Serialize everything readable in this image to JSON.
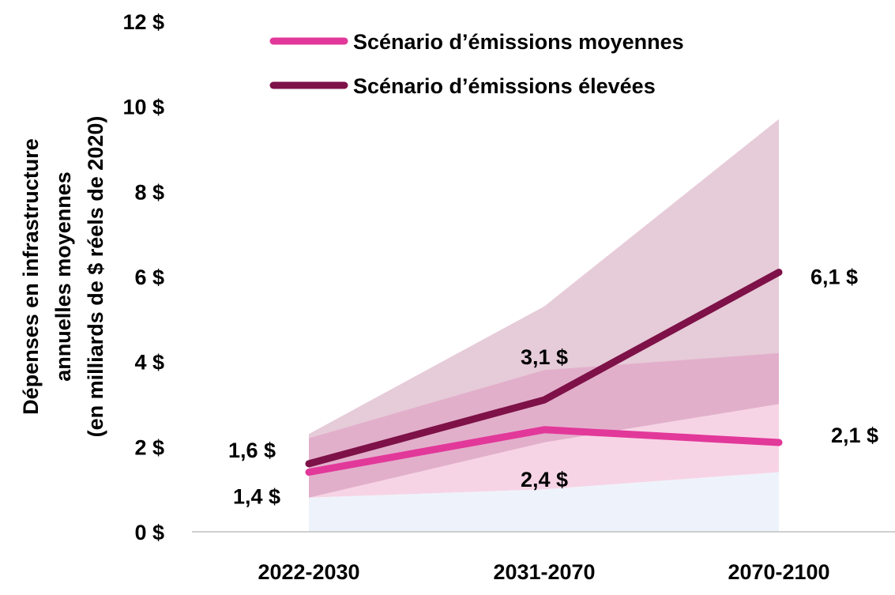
{
  "chart_data": {
    "type": "line",
    "title": "",
    "xlabel": "",
    "ylabel_lines": [
      "Dépenses en infrastructure",
      "annuelles moyennes",
      "(en milliards de $ réels de 2020)"
    ],
    "categories": [
      "2022-2030",
      "2031-2070",
      "2070-2100"
    ],
    "ylim": [
      0,
      12
    ],
    "y_ticks": [
      {
        "value": 0,
        "label": "0 $"
      },
      {
        "value": 2,
        "label": "2 $"
      },
      {
        "value": 4,
        "label": "4 $"
      },
      {
        "value": 6,
        "label": "6 $"
      },
      {
        "value": 8,
        "label": "8 $"
      },
      {
        "value": 10,
        "label": "10 $"
      },
      {
        "value": 12,
        "label": "12 $"
      }
    ],
    "grid": false,
    "legend_position": "top",
    "series": [
      {
        "name": "Scénario d’émissions moyennes",
        "color": "#e2389a",
        "values": [
          1.4,
          2.4,
          2.1
        ],
        "value_labels": [
          "1,4 $",
          "2,4 $",
          "2,1 $"
        ]
      },
      {
        "name": "Scénario d’émissions élevées",
        "color": "#7d1148",
        "values": [
          1.6,
          3.1,
          6.1
        ],
        "value_labels": [
          "1,6 $",
          "3,1 $",
          "6,1 $"
        ]
      }
    ],
    "bands": [
      {
        "color": "#e6cbd8",
        "lower": [
          0.8,
          2.1,
          4.2
        ],
        "upper": [
          2.3,
          5.3,
          9.7
        ]
      },
      {
        "color": "#e2afcb",
        "lower": [
          0.8,
          2.1,
          3.0
        ],
        "upper": [
          2.2,
          3.8,
          4.2
        ]
      },
      {
        "color": "#f7d4e5",
        "lower": [
          0.8,
          1.0,
          1.4
        ],
        "upper": [
          0.8,
          2.1,
          3.0
        ]
      },
      {
        "color": "#eef3fb",
        "lower": [
          0,
          0,
          0
        ],
        "upper": [
          0.8,
          1.0,
          1.4
        ]
      }
    ]
  }
}
